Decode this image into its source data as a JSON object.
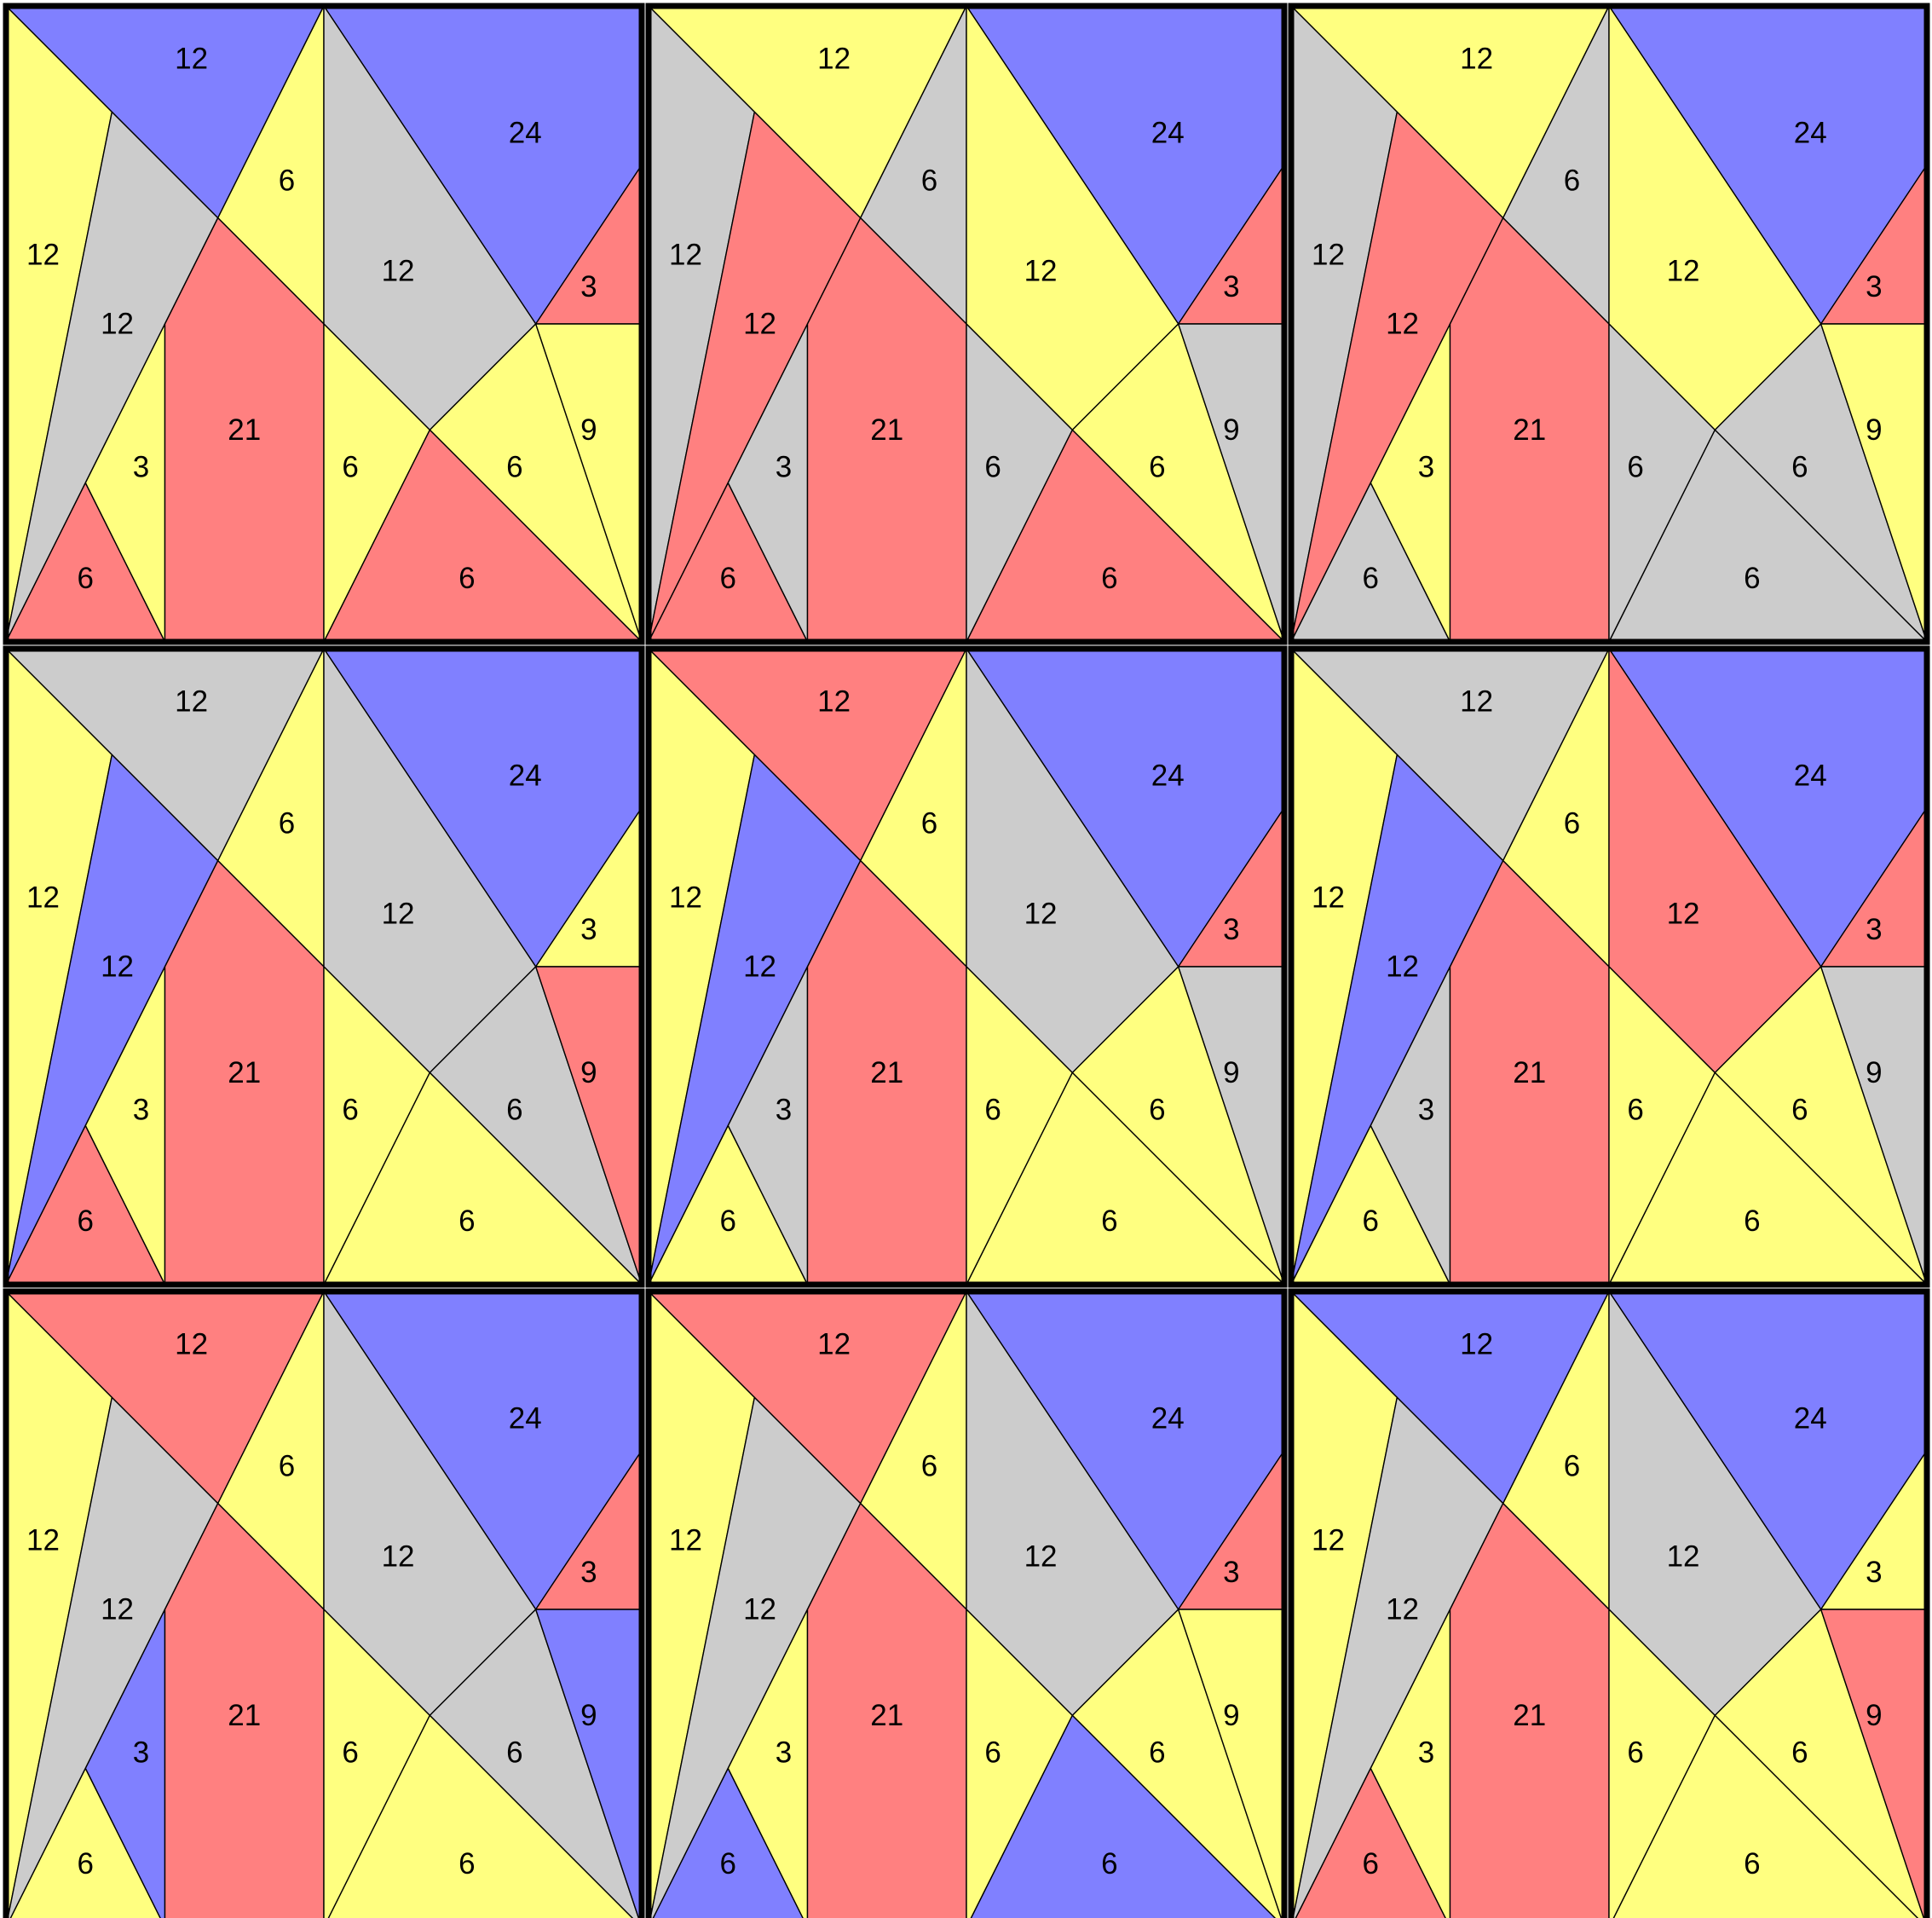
{
  "colors": {
    "Y": "#ffff80",
    "B": "#8080ff",
    "R": "#ff8080",
    "G": "#cccccc"
  },
  "piece_labels": [
    "12",
    "12",
    "6",
    "12",
    "12",
    "3",
    "6",
    "21",
    "24",
    "12",
    "6",
    "3",
    "6",
    "6",
    "9",
    "12"
  ],
  "puzzles": [
    {
      "colors": [
        "B",
        "Y",
        "Y",
        "G",
        "G",
        "Y",
        "R",
        "R",
        "B",
        "G",
        "Y",
        "R",
        "Y",
        "R",
        "Y",
        "G"
      ]
    },
    {
      "colors": [
        "Y",
        "G",
        "G",
        "R",
        "B",
        "G",
        "R",
        "R",
        "B",
        "Y",
        "G",
        "R",
        "Y",
        "R",
        "G",
        "Y"
      ]
    },
    {
      "colors": [
        "Y",
        "G",
        "G",
        "R",
        "B",
        "Y",
        "G",
        "R",
        "B",
        "Y",
        "G",
        "R",
        "G",
        "G",
        "Y",
        "R"
      ]
    },
    {
      "colors": [
        "G",
        "Y",
        "Y",
        "B",
        "B",
        "Y",
        "R",
        "R",
        "B",
        "G",
        "Y",
        "Y",
        "G",
        "Y",
        "R",
        "G"
      ]
    },
    {
      "colors": [
        "R",
        "Y",
        "Y",
        "B",
        "B",
        "G",
        "Y",
        "R",
        "B",
        "G",
        "Y",
        "R",
        "Y",
        "Y",
        "G",
        "G"
      ]
    },
    {
      "colors": [
        "G",
        "Y",
        "Y",
        "B",
        "B",
        "G",
        "Y",
        "R",
        "B",
        "R",
        "Y",
        "R",
        "Y",
        "Y",
        "G",
        "G"
      ]
    },
    {
      "colors": [
        "R",
        "Y",
        "Y",
        "G",
        "G",
        "B",
        "Y",
        "R",
        "B",
        "G",
        "Y",
        "R",
        "G",
        "Y",
        "B",
        "G"
      ]
    },
    {
      "colors": [
        "R",
        "Y",
        "Y",
        "G",
        "G",
        "Y",
        "B",
        "R",
        "B",
        "G",
        "Y",
        "R",
        "Y",
        "B",
        "Y",
        "G"
      ]
    },
    {
      "colors": [
        "B",
        "Y",
        "Y",
        "G",
        "G",
        "Y",
        "R",
        "R",
        "B",
        "G",
        "Y",
        "Y",
        "Y",
        "Y",
        "R",
        "G"
      ]
    }
  ]
}
